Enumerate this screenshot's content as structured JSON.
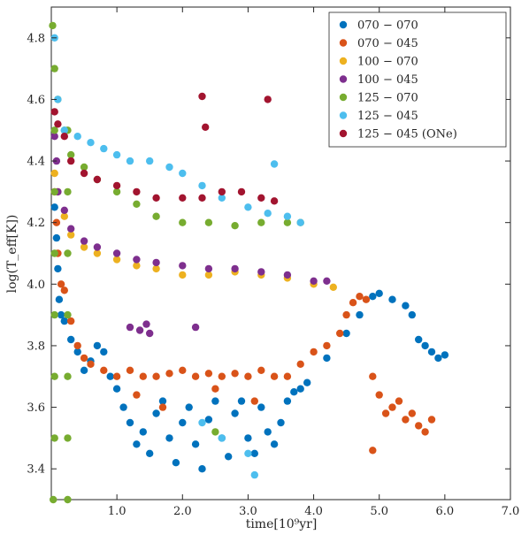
{
  "chart_data": {
    "type": "scatter",
    "xlabel": "time[10⁹yr]",
    "ylabel": "log(T_eff[K])",
    "xlim": [
      0.0,
      7.0
    ],
    "ylim": [
      3.3,
      4.9
    ],
    "x_ticks": [
      "1.0",
      "2.0",
      "3.0",
      "4.0",
      "5.0",
      "6.0",
      "7.0"
    ],
    "y_ticks": [
      "3.4",
      "3.6",
      "3.8",
      "4.0",
      "4.2",
      "4.4",
      "4.6",
      "4.8"
    ],
    "grid": false,
    "legend_position": "top-right",
    "series": [
      {
        "name": "070 − 070",
        "color": "#0072BD",
        "points": [
          [
            0.05,
            4.25
          ],
          [
            0.08,
            4.15
          ],
          [
            0.1,
            4.05
          ],
          [
            0.12,
            3.95
          ],
          [
            0.15,
            3.9
          ],
          [
            0.2,
            3.88
          ],
          [
            0.3,
            3.82
          ],
          [
            0.4,
            3.78
          ],
          [
            0.5,
            3.72
          ],
          [
            0.6,
            3.75
          ],
          [
            0.7,
            3.8
          ],
          [
            0.8,
            3.78
          ],
          [
            0.9,
            3.7
          ],
          [
            1.0,
            3.66
          ],
          [
            1.1,
            3.6
          ],
          [
            1.2,
            3.55
          ],
          [
            1.3,
            3.48
          ],
          [
            1.4,
            3.52
          ],
          [
            1.5,
            3.45
          ],
          [
            1.6,
            3.58
          ],
          [
            1.7,
            3.62
          ],
          [
            1.8,
            3.5
          ],
          [
            1.9,
            3.42
          ],
          [
            2.0,
            3.55
          ],
          [
            2.1,
            3.6
          ],
          [
            2.2,
            3.48
          ],
          [
            2.3,
            3.4
          ],
          [
            2.4,
            3.56
          ],
          [
            2.5,
            3.62
          ],
          [
            2.6,
            3.5
          ],
          [
            2.7,
            3.44
          ],
          [
            2.8,
            3.58
          ],
          [
            2.9,
            3.62
          ],
          [
            3.0,
            3.5
          ],
          [
            3.1,
            3.45
          ],
          [
            3.2,
            3.6
          ],
          [
            3.3,
            3.52
          ],
          [
            3.4,
            3.48
          ],
          [
            3.5,
            3.55
          ],
          [
            3.6,
            3.62
          ],
          [
            3.7,
            3.65
          ],
          [
            3.8,
            3.66
          ],
          [
            3.9,
            3.68
          ],
          [
            4.2,
            3.76
          ],
          [
            4.5,
            3.84
          ],
          [
            4.7,
            3.9
          ],
          [
            4.9,
            3.96
          ],
          [
            5.0,
            3.97
          ],
          [
            5.2,
            3.95
          ],
          [
            5.4,
            3.93
          ],
          [
            5.5,
            3.9
          ],
          [
            5.6,
            3.82
          ],
          [
            5.7,
            3.8
          ],
          [
            5.8,
            3.78
          ],
          [
            5.9,
            3.76
          ],
          [
            6.0,
            3.77
          ]
        ]
      },
      {
        "name": "070 − 045",
        "color": "#D95319",
        "points": [
          [
            0.05,
            4.3
          ],
          [
            0.08,
            4.2
          ],
          [
            0.1,
            4.1
          ],
          [
            0.15,
            4.0
          ],
          [
            0.2,
            3.98
          ],
          [
            0.3,
            3.88
          ],
          [
            0.4,
            3.8
          ],
          [
            0.5,
            3.76
          ],
          [
            0.6,
            3.74
          ],
          [
            0.8,
            3.72
          ],
          [
            1.0,
            3.7
          ],
          [
            1.2,
            3.72
          ],
          [
            1.4,
            3.7
          ],
          [
            1.6,
            3.7
          ],
          [
            1.8,
            3.71
          ],
          [
            2.0,
            3.72
          ],
          [
            2.2,
            3.7
          ],
          [
            2.4,
            3.71
          ],
          [
            2.6,
            3.7
          ],
          [
            2.8,
            3.71
          ],
          [
            3.0,
            3.7
          ],
          [
            3.2,
            3.72
          ],
          [
            3.4,
            3.7
          ],
          [
            3.6,
            3.7
          ],
          [
            3.8,
            3.74
          ],
          [
            4.0,
            3.78
          ],
          [
            4.2,
            3.8
          ],
          [
            4.4,
            3.84
          ],
          [
            4.5,
            3.9
          ],
          [
            4.6,
            3.94
          ],
          [
            4.7,
            3.96
          ],
          [
            4.8,
            3.95
          ],
          [
            4.9,
            3.7
          ],
          [
            5.0,
            3.64
          ],
          [
            5.1,
            3.58
          ],
          [
            5.2,
            3.6
          ],
          [
            5.3,
            3.62
          ],
          [
            5.4,
            3.56
          ],
          [
            5.5,
            3.58
          ],
          [
            5.6,
            3.54
          ],
          [
            5.7,
            3.52
          ],
          [
            5.8,
            3.56
          ],
          [
            1.3,
            3.64
          ],
          [
            1.7,
            3.6
          ],
          [
            2.5,
            3.66
          ],
          [
            3.1,
            3.62
          ],
          [
            4.9,
            3.46
          ]
        ]
      },
      {
        "name": "100 − 070",
        "color": "#EDB120",
        "points": [
          [
            0.05,
            4.36
          ],
          [
            0.1,
            4.3
          ],
          [
            0.2,
            4.22
          ],
          [
            0.3,
            4.16
          ],
          [
            0.5,
            4.12
          ],
          [
            0.7,
            4.1
          ],
          [
            1.0,
            4.08
          ],
          [
            1.3,
            4.06
          ],
          [
            1.6,
            4.05
          ],
          [
            2.0,
            4.03
          ],
          [
            2.4,
            4.03
          ],
          [
            2.8,
            4.04
          ],
          [
            3.2,
            4.03
          ],
          [
            3.6,
            4.02
          ],
          [
            4.0,
            4.0
          ],
          [
            4.3,
            3.99
          ]
        ]
      },
      {
        "name": "100 − 045",
        "color": "#7E2F8E",
        "points": [
          [
            0.05,
            4.48
          ],
          [
            0.08,
            4.4
          ],
          [
            0.1,
            4.3
          ],
          [
            0.2,
            4.24
          ],
          [
            0.3,
            4.18
          ],
          [
            0.5,
            4.14
          ],
          [
            0.7,
            4.12
          ],
          [
            1.0,
            4.1
          ],
          [
            1.3,
            4.08
          ],
          [
            1.6,
            4.07
          ],
          [
            2.0,
            4.06
          ],
          [
            2.4,
            4.05
          ],
          [
            2.8,
            4.05
          ],
          [
            3.2,
            4.04
          ],
          [
            3.6,
            4.03
          ],
          [
            4.0,
            4.01
          ],
          [
            4.2,
            4.01
          ],
          [
            1.2,
            3.86
          ],
          [
            1.35,
            3.85
          ],
          [
            1.45,
            3.87
          ],
          [
            1.5,
            3.84
          ],
          [
            2.2,
            3.86
          ]
        ]
      },
      {
        "name": "125 − 070",
        "color": "#77AC30",
        "points": [
          [
            0.02,
            4.84
          ],
          [
            0.05,
            4.7
          ],
          [
            0.1,
            4.6
          ],
          [
            0.2,
            4.5
          ],
          [
            0.3,
            4.42
          ],
          [
            0.5,
            4.38
          ],
          [
            0.7,
            4.34
          ],
          [
            1.0,
            4.3
          ],
          [
            1.3,
            4.26
          ],
          [
            1.6,
            4.22
          ],
          [
            2.0,
            4.2
          ],
          [
            2.4,
            4.2
          ],
          [
            2.8,
            4.19
          ],
          [
            3.2,
            4.2
          ],
          [
            3.6,
            4.2
          ],
          [
            3.8,
            4.2
          ],
          [
            0.03,
            3.3
          ],
          [
            0.05,
            3.5
          ],
          [
            0.05,
            3.7
          ],
          [
            0.05,
            3.9
          ],
          [
            0.05,
            4.1
          ],
          [
            0.05,
            4.3
          ],
          [
            0.05,
            4.5
          ],
          [
            0.25,
            3.3
          ],
          [
            0.25,
            3.5
          ],
          [
            0.25,
            3.7
          ],
          [
            0.25,
            3.9
          ],
          [
            0.25,
            4.1
          ],
          [
            0.25,
            4.3
          ],
          [
            0.25,
            4.5
          ],
          [
            2.5,
            3.52
          ]
        ]
      },
      {
        "name": "125 − 045",
        "color": "#4DBEEE",
        "points": [
          [
            0.05,
            4.8
          ],
          [
            0.1,
            4.6
          ],
          [
            0.2,
            4.5
          ],
          [
            0.4,
            4.48
          ],
          [
            0.6,
            4.46
          ],
          [
            0.8,
            4.44
          ],
          [
            1.0,
            4.42
          ],
          [
            1.2,
            4.4
          ],
          [
            1.5,
            4.4
          ],
          [
            1.8,
            4.38
          ],
          [
            2.0,
            4.36
          ],
          [
            2.3,
            4.32
          ],
          [
            2.6,
            4.28
          ],
          [
            3.0,
            4.25
          ],
          [
            3.3,
            4.23
          ],
          [
            3.6,
            4.22
          ],
          [
            3.8,
            4.2
          ],
          [
            3.4,
            4.39
          ],
          [
            2.3,
            3.55
          ],
          [
            2.6,
            3.5
          ],
          [
            3.0,
            3.45
          ],
          [
            3.1,
            3.38
          ]
        ]
      },
      {
        "name": "125 − 045 (ONe)",
        "color": "#A2142F",
        "points": [
          [
            0.05,
            4.56
          ],
          [
            0.1,
            4.52
          ],
          [
            0.2,
            4.48
          ],
          [
            0.3,
            4.4
          ],
          [
            0.5,
            4.36
          ],
          [
            0.7,
            4.34
          ],
          [
            1.0,
            4.32
          ],
          [
            1.3,
            4.3
          ],
          [
            1.6,
            4.28
          ],
          [
            2.0,
            4.28
          ],
          [
            2.3,
            4.28
          ],
          [
            2.6,
            4.3
          ],
          [
            2.9,
            4.3
          ],
          [
            3.2,
            4.28
          ],
          [
            3.4,
            4.27
          ],
          [
            2.3,
            4.61
          ],
          [
            2.35,
            4.51
          ],
          [
            3.3,
            4.6
          ]
        ]
      }
    ]
  }
}
